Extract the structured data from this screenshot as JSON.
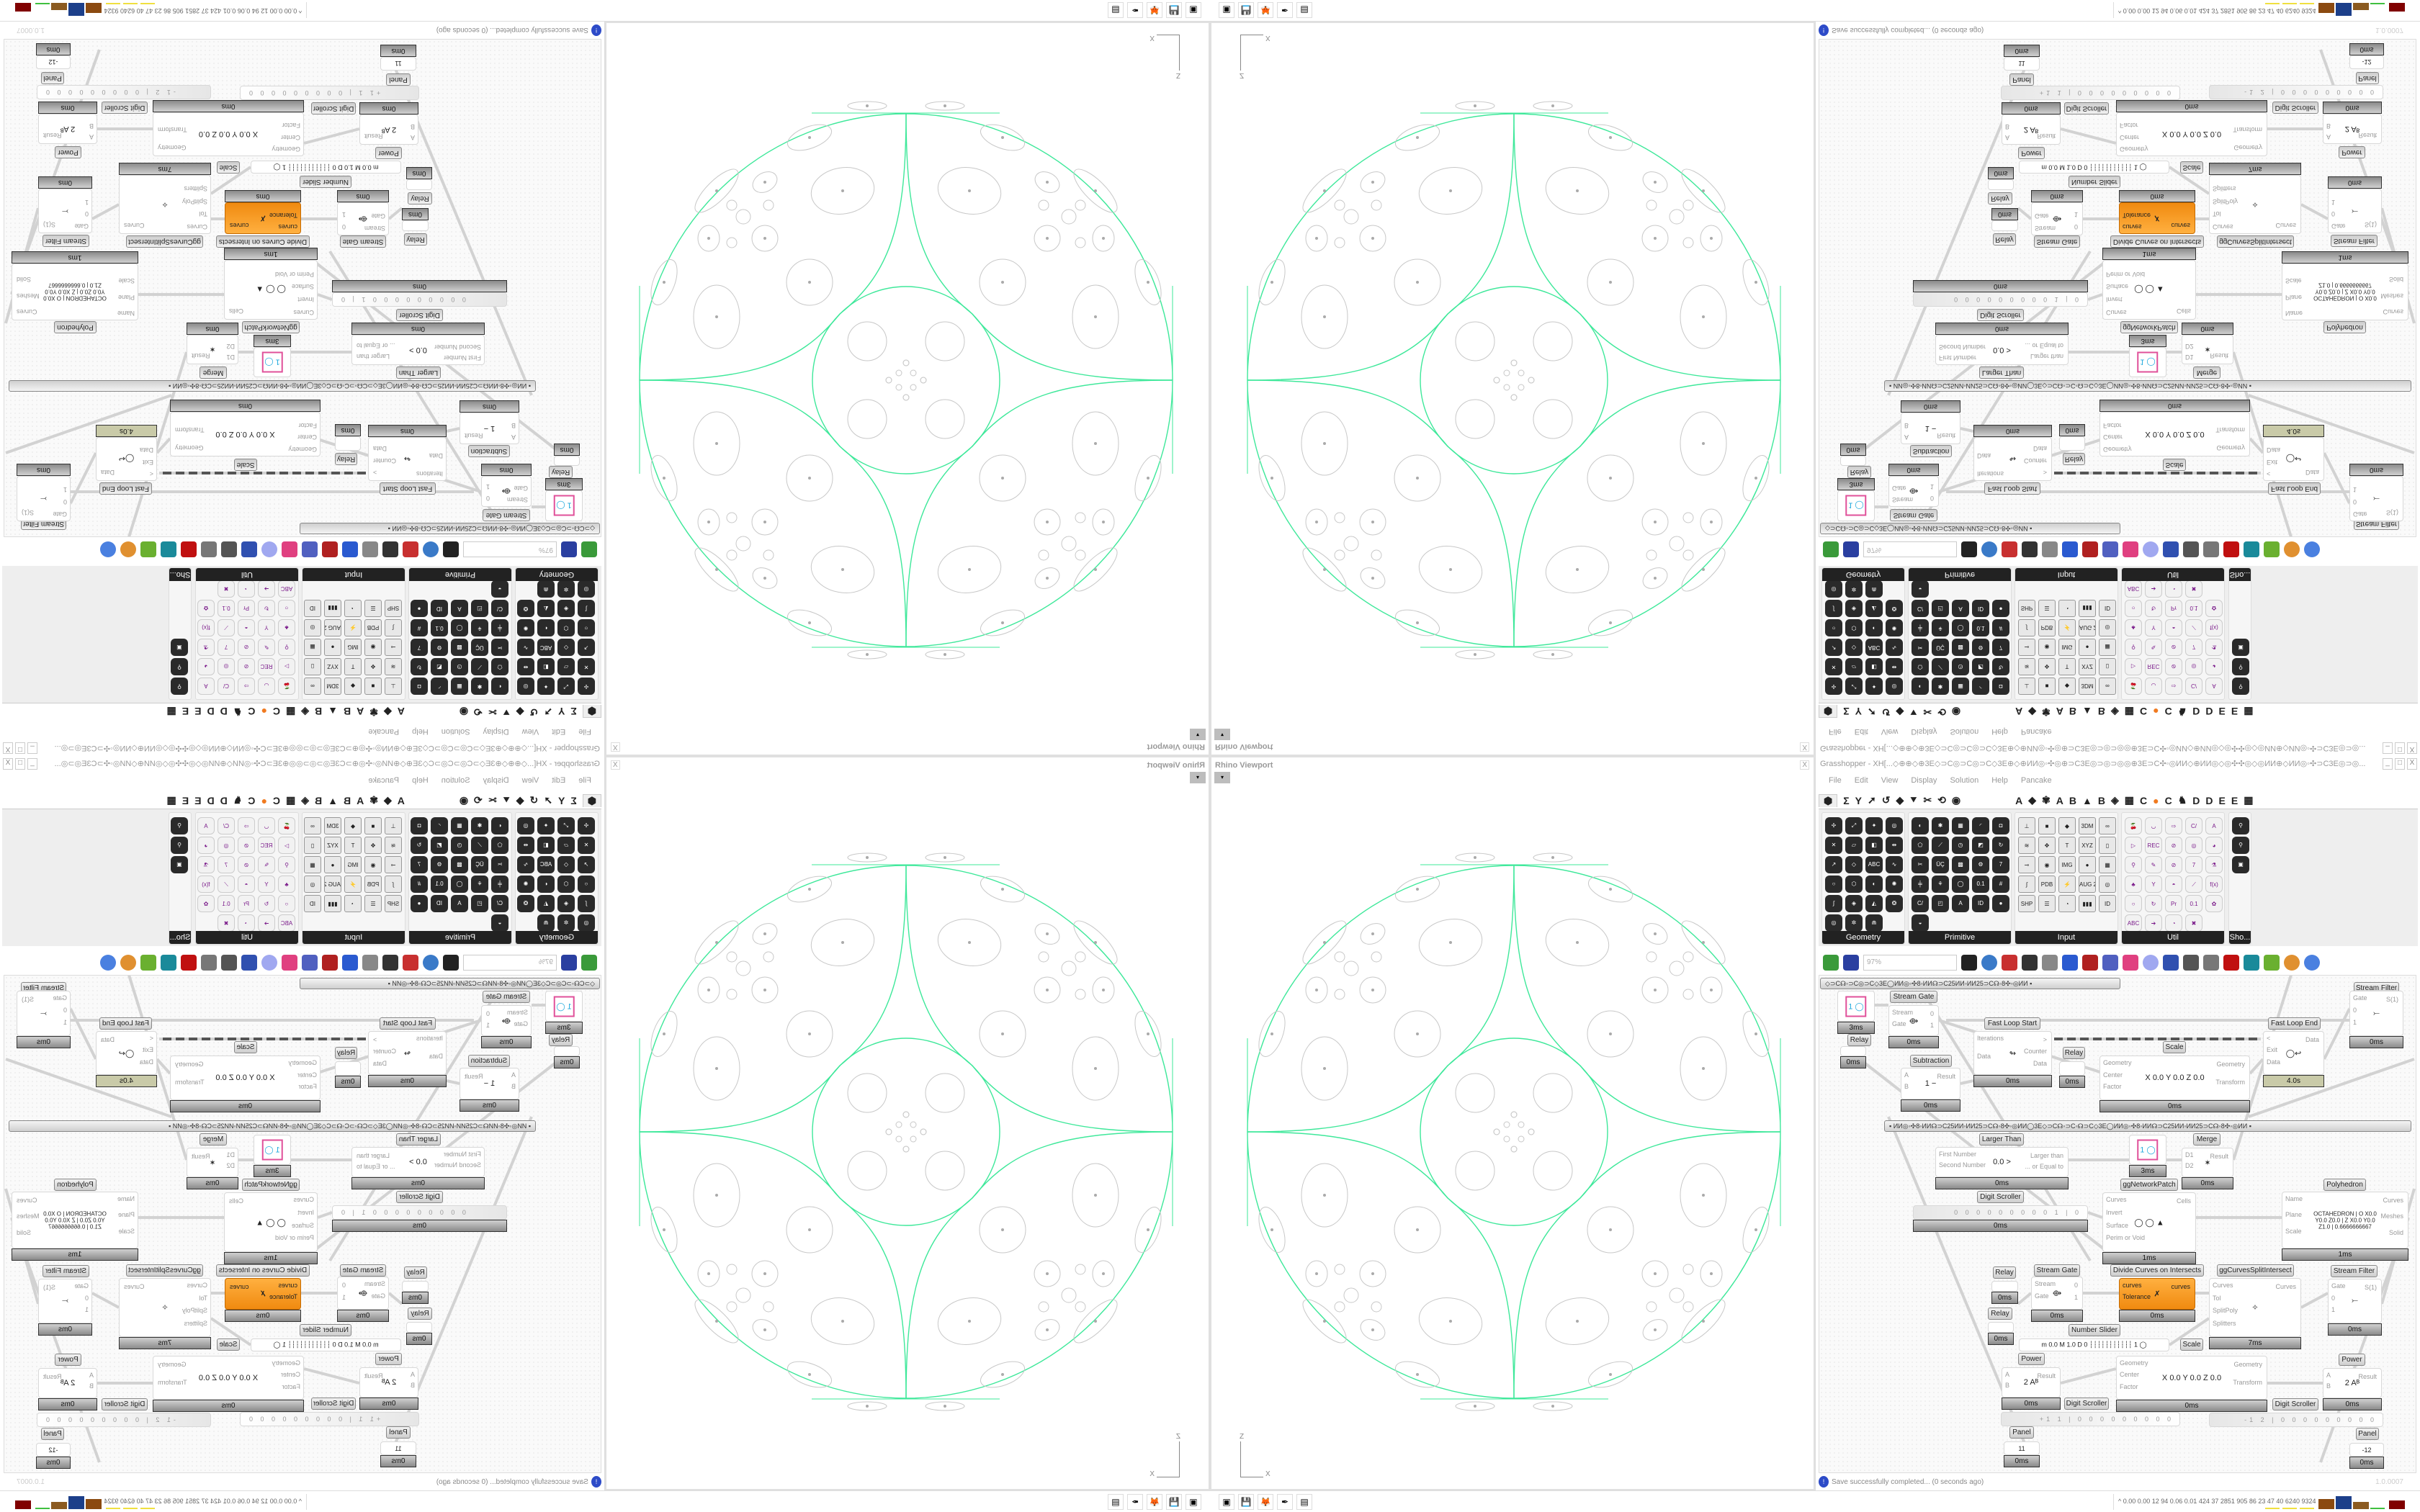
{
  "viewport": {
    "title": "Rhino Viewport",
    "close": "X",
    "dropdown": "▾",
    "axis_z": "Z",
    "axis_x": "X",
    "curve_color": "#3ee89a",
    "detail_color": "#c8c8c8"
  },
  "grasshopper": {
    "title": "Grasshopper - XH[...◇⊕⊕◇⊕3E◇⊃C◎⊃C◎⊃C◇3E⊕◇⊕ИИ◎◦✣◎⊕⊃C3E◎⊃◎⊃◎◎⊕3E⊃C✣◦◎ИИ◇⊕ИИ◎◇◎✣✣◎◇◎ИИ⊕◇ИИ◎◦✣⊃C3E◎⊃◎...",
    "window_buttons": [
      "_",
      "□",
      "X"
    ],
    "menu": [
      "File",
      "Edit",
      "View",
      "Display",
      "Solution",
      "Help",
      "Pancake"
    ],
    "tabs_left": [
      "⬢",
      "Σ",
      "Y",
      "➚",
      "↺",
      "◆",
      "⯆",
      "✂",
      "⟲",
      "◉"
    ],
    "tabs_right": [
      "A",
      "◆",
      "✾",
      "A",
      "B",
      "▲",
      "B",
      "◈",
      "▦",
      "C",
      "●",
      "C",
      "♞",
      "D",
      "D",
      "E",
      "E",
      "▦"
    ],
    "panels": [
      {
        "label": "Geometry",
        "icons": [
          "✢",
          "⤢",
          "✦",
          "◎",
          "✕",
          "▱",
          "◧",
          "⇹",
          "↗",
          "◇",
          "ABC",
          "∿",
          "○",
          "⬡",
          "◐",
          "✺",
          "∫",
          "◈",
          "◭",
          "❂",
          "◎",
          "✲",
          "⋒"
        ]
      },
      {
        "label": "Primitive",
        "icons": [
          "◐",
          "✱",
          "▦",
          "◜",
          "◘",
          "⬠",
          "⟋",
          "◷",
          "◩",
          "↻",
          "✂",
          "ÜÇ",
          "▩",
          "⚙",
          "7",
          "╪",
          "⚘",
          "◯",
          "0.1",
          "#",
          "C/",
          "◰",
          "A",
          "ID",
          "●",
          "◒"
        ]
      },
      {
        "label": "Input",
        "icons": [
          "⊥",
          "■",
          "◆",
          "3DM",
          "∞",
          "≋",
          "✥",
          "T",
          "XYZ",
          "▯",
          "⊸",
          "◉",
          "IMG",
          "●",
          "▦",
          "∫",
          "PDB",
          "⚡",
          "AUG 20",
          "◎",
          "SHP",
          "☰",
          "◔",
          "▮▮▮",
          "ID"
        ]
      },
      {
        "label": "Util",
        "icons": [
          "🍒",
          "◡",
          "⇨",
          "C/",
          "A",
          "▷",
          "REC",
          "⊘",
          "◎",
          "◕",
          "⚲",
          "✎",
          "⊘",
          "7",
          "⚗",
          "♣",
          "Y",
          "◓",
          "⟋",
          "f(x)",
          "○",
          "↻",
          "Pr",
          "0.1",
          "✿",
          "ABC",
          "➔",
          "◔",
          "✖"
        ]
      },
      {
        "label": "Sho...",
        "icons": [
          "⚲",
          "⚲",
          "▣"
        ]
      }
    ],
    "toolbar": {
      "zoom": "97%",
      "icons": [
        "new-file-icon",
        "save-icon",
        "zoom-extents-icon",
        "preview-icon",
        "sketch-icon",
        "bake-icon",
        "at-icon",
        "gha-icon",
        "image-icon",
        "search-icon",
        "package-icon",
        "bulb-icon",
        "wires-icon",
        "shaded-icon",
        "wireframe-icon",
        "red-box-icon",
        "cyan-icon",
        "green-icon",
        "sphere-icon",
        "blue-sphere-icon"
      ]
    },
    "groups": [
      "◇⊃C☊◦⊃C◎⊃C◇3E◯ИИ◎◦✣8◦ИИ☊⊃C25ИИ◦ИИ25⊃C☊◦8✣◦◎ИИ   ▪",
      "▪   ИИ◎◦✣8◦ИИ☊⊃C25ИИ◦ИИ25⊃C☊◦8✣◦◎ИИ◯3E◇⊃C☊◦⊃C◦☊⊃C◇3E◯ИИ◎◦✣8◦ИИ☊⊃C25ИИ◦ИИ25⊃C☊◦8✣◦◎ИИ   ▪"
    ],
    "components": [
      {
        "label": "Stream Gate",
        "inputs": [
          "Stream",
          "Gate"
        ],
        "outputs": [
          "0",
          "1"
        ],
        "center": "⟴",
        "time": "0ms"
      },
      {
        "label": "",
        "inputs": [],
        "outputs": [],
        "center": "1 ◯",
        "time": "3ms"
      },
      {
        "label": "Relay",
        "inputs": [],
        "outputs": [],
        "center": "",
        "time": "0ms"
      },
      {
        "label": "Fast Loop Start",
        "inputs": [
          "Iterations",
          "Data"
        ],
        "outputs": [
          ">",
          "Counter",
          "Data"
        ],
        "center": "↬",
        "time": "0ms"
      },
      {
        "label": "Subtraction",
        "inputs": [
          "A",
          "B"
        ],
        "outputs": [
          "Result"
        ],
        "center": "1  −",
        "time": "0ms"
      },
      {
        "label": "Relay",
        "inputs": [],
        "outputs": [],
        "center": "",
        "time": "0ms"
      },
      {
        "label": "Scale",
        "inputs": [
          "Geometry",
          "Center",
          "Factor"
        ],
        "outputs": [
          "Geometry",
          "Transform"
        ],
        "center": "X 0.0  Y 0.0  Z 0.0",
        "time": "0ms"
      },
      {
        "label": "Fast Loop End",
        "inputs": [
          "<",
          "Exit",
          "Data"
        ],
        "outputs": [
          "Data"
        ],
        "center": "◯↩",
        "time": "4.0s"
      },
      {
        "label": "Stream Filter",
        "inputs": [
          "Gate",
          "0",
          "1"
        ],
        "outputs": [
          "S(1)"
        ],
        "center": "⤚",
        "time": "0ms"
      },
      {
        "label": "Larger Than",
        "inputs": [
          "First Number",
          "Second Number"
        ],
        "outputs": [
          "Larger than",
          "... or Equal to"
        ],
        "center": "0.0  >",
        "time": "0ms"
      },
      {
        "label": "Digit Scroller",
        "inputs": [],
        "outputs": [],
        "center": "",
        "scroller": "0 0 0 0 0 0 0 0 0 1 | 0",
        "time": "0ms"
      },
      {
        "label": "",
        "inputs": [],
        "outputs": [],
        "center": "1 ◯",
        "time": "3ms"
      },
      {
        "label": "Merge",
        "inputs": [
          "D1",
          "D2"
        ],
        "outputs": [
          "Result"
        ],
        "center": "✶",
        "time": "0ms"
      },
      {
        "label": "ggNetworkPatch",
        "inputs": [
          "Curves",
          "Invert",
          "Surface",
          "Perim or Void"
        ],
        "outputs": [
          "Cells"
        ],
        "center": "◯ ◯ ▲",
        "time": "1ms"
      },
      {
        "label": "Polyhedron",
        "inputs": [
          "Name",
          "Plane",
          "Scale"
        ],
        "outputs": [
          "Curves",
          "Meshes",
          "Solid"
        ],
        "center": "OCTAHEDRON | O X0.0 Y0.0 Z0.0 | Z X0.0 Y0.0 Z1.0 | 0.6666666667",
        "time": "1ms"
      },
      {
        "label": "Relay",
        "inputs": [],
        "outputs": [],
        "center": "",
        "time": "0ms"
      },
      {
        "label": "Stream Gate",
        "inputs": [
          "Stream",
          "Gate"
        ],
        "outputs": [
          "0",
          "1"
        ],
        "center": "⟴",
        "time": "0ms"
      },
      {
        "label": "Divide Curves on Intersects",
        "inputs": [
          "curves",
          "Tolerance"
        ],
        "outputs": [
          "curves"
        ],
        "center": "✗",
        "time": "0ms"
      },
      {
        "label": "ggCurvesSplitIntersect",
        "inputs": [
          "Curves",
          "Tol",
          "SplitPoly",
          "Splitters"
        ],
        "outputs": [
          "Curves"
        ],
        "center": "✧",
        "time": "7ms"
      },
      {
        "label": "Stream Filter",
        "inputs": [
          "Gate",
          "0",
          "1"
        ],
        "outputs": [
          "S(1)"
        ],
        "center": "⤚",
        "time": "0ms"
      },
      {
        "label": "Relay",
        "inputs": [],
        "outputs": [],
        "center": "",
        "time": "0ms"
      },
      {
        "label": "Number Slider",
        "inputs": [],
        "outputs": [],
        "center": "m 0.0  M 1.0  D 0   ┆┆┆┆┆┆┆┆┆┆┆ 1 ◯",
        "time": ""
      },
      {
        "label": "Scale",
        "inputs": [
          "Geometry",
          "Center",
          "Factor"
        ],
        "outputs": [
          "Geometry",
          "Transform"
        ],
        "center": "X 0.0  Y 0.0  Z 0.0",
        "time": "0ms"
      },
      {
        "label": "Power",
        "inputs": [
          "A",
          "B"
        ],
        "outputs": [
          "Result"
        ],
        "center": "2  Aᴮ",
        "time": "0ms"
      },
      {
        "label": "Power",
        "inputs": [
          "A",
          "B"
        ],
        "outputs": [
          "Result"
        ],
        "center": "2  Aᴮ",
        "time": "0ms"
      },
      {
        "label": "Digit Scroller",
        "inputs": [],
        "outputs": [],
        "center": "",
        "scroller": "+1 1 | 0 0 0 0 0 0 0 0 0",
        "time": ""
      },
      {
        "label": "Digit Scroller",
        "inputs": [],
        "outputs": [],
        "center": "",
        "scroller": "-1 2 | 0 0 0 0 0 0 0 0 0",
        "time": ""
      },
      {
        "label": "Panel",
        "inputs": [],
        "outputs": [],
        "center": "11",
        "time": "0ms"
      },
      {
        "label": "Panel",
        "inputs": [],
        "outputs": [],
        "center": "-12",
        "time": "0ms"
      }
    ],
    "status": {
      "message": "Save successfully completed... (0 seconds ago)",
      "version": "1.0.0007"
    }
  },
  "taskbar": {
    "icons": [
      "▣",
      "💾",
      "🦊",
      "✒",
      "▤"
    ],
    "stats": "^  0.00 0.00  12  94  0.06 0.01  424  37  2851 905  86  23  47  40  6240 9324",
    "bar_colors": [
      "#f0e040",
      "#f0e040",
      "#f0e040",
      "#8b4a10",
      "#1c3f8a",
      "#8b5a20",
      "#40c040",
      "#800000"
    ]
  }
}
